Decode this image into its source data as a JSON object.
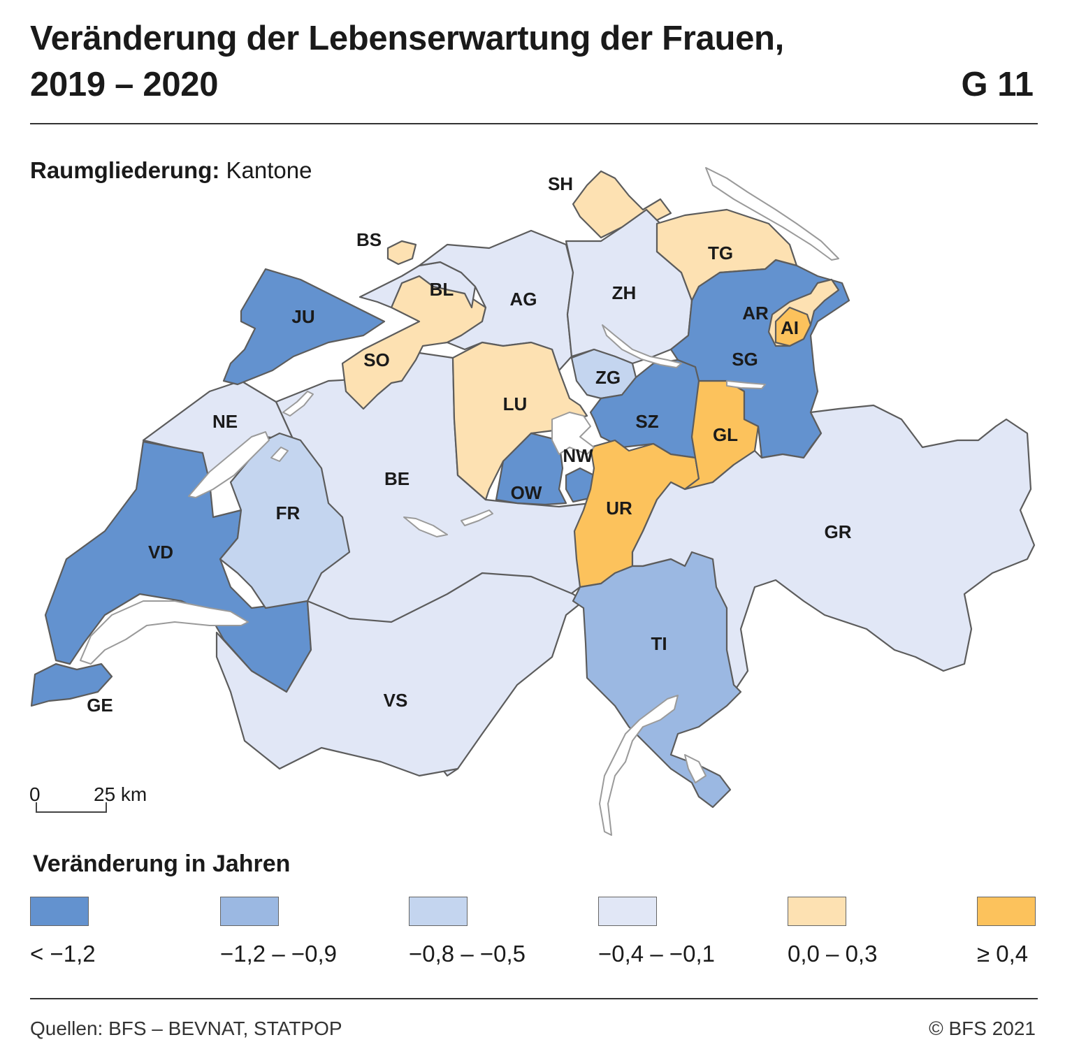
{
  "header": {
    "title_line1": "Veränderung der Lebenserwartung der Frauen,",
    "title_line2": "2019 – 2020",
    "figure_id": "G 11"
  },
  "subtitle": {
    "label": "Raumgliederung:",
    "value": "Kantone"
  },
  "scale_bar": {
    "start": "0",
    "end": "25 km"
  },
  "legend": {
    "title": "Veränderung in Jahren",
    "classes": [
      {
        "label": "< −1,2",
        "color": "#6392cf"
      },
      {
        "label": "−1,2 – −0,9",
        "color": "#9bb8e2"
      },
      {
        "label": "−0,8 – −0,5",
        "color": "#c4d5ef"
      },
      {
        "label": "−0,4 – −0,1",
        "color": "#e1e7f6"
      },
      {
        "label": "0,0 – 0,3",
        "color": "#fde1b2"
      },
      {
        "label": "≥ 0,4",
        "color": "#fcc25c"
      }
    ]
  },
  "cantons": [
    {
      "code": "SH",
      "class_index": 4
    },
    {
      "code": "BS",
      "class_index": 4
    },
    {
      "code": "TG",
      "class_index": 4
    },
    {
      "code": "BL",
      "class_index": 3
    },
    {
      "code": "AG",
      "class_index": 3
    },
    {
      "code": "ZH",
      "class_index": 3
    },
    {
      "code": "JU",
      "class_index": 0
    },
    {
      "code": "AR",
      "class_index": 4
    },
    {
      "code": "AI",
      "class_index": 5
    },
    {
      "code": "SO",
      "class_index": 4
    },
    {
      "code": "SG",
      "class_index": 0
    },
    {
      "code": "ZG",
      "class_index": 2
    },
    {
      "code": "LU",
      "class_index": 4
    },
    {
      "code": "SZ",
      "class_index": 0
    },
    {
      "code": "NE",
      "class_index": 3
    },
    {
      "code": "GL",
      "class_index": 5
    },
    {
      "code": "NW",
      "class_index": 0
    },
    {
      "code": "BE",
      "class_index": 3
    },
    {
      "code": "OW",
      "class_index": 0
    },
    {
      "code": "FR",
      "class_index": 2
    },
    {
      "code": "UR",
      "class_index": 5
    },
    {
      "code": "GR",
      "class_index": 3
    },
    {
      "code": "VD",
      "class_index": 0
    },
    {
      "code": "TI",
      "class_index": 1
    },
    {
      "code": "VS",
      "class_index": 3
    },
    {
      "code": "GE",
      "class_index": 0
    }
  ],
  "footer": {
    "source": "Quellen: BFS – BEVNAT, STATPOP",
    "copyright": "© BFS 2021"
  }
}
